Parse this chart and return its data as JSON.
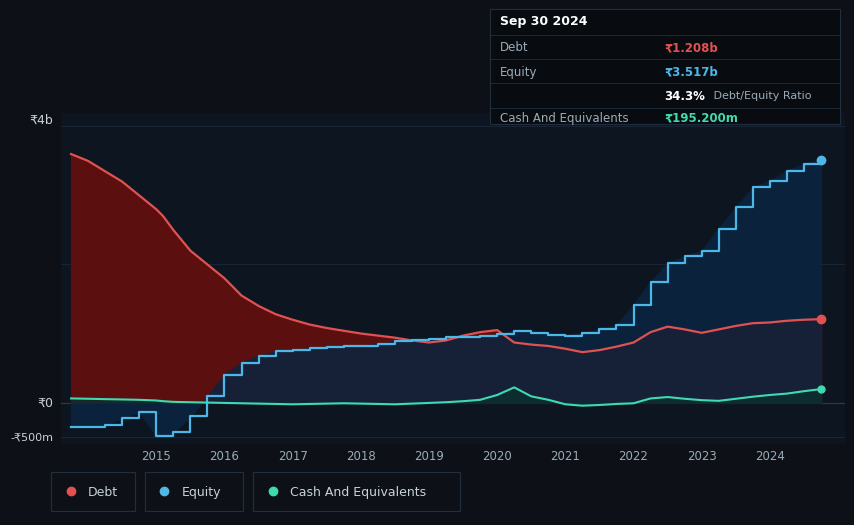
{
  "background_color": "#0d1117",
  "chart_bg": "#0d1520",
  "title": "Sep 30 2024",
  "y_label_4b": "₹4b",
  "y_label_0": "₹0",
  "y_label_neg500m": "-₹500m",
  "x_ticks": [
    "2015",
    "2016",
    "2017",
    "2018",
    "2019",
    "2020",
    "2021",
    "2022",
    "2023",
    "2024"
  ],
  "legend_items": [
    "Debt",
    "Equity",
    "Cash And Equivalents"
  ],
  "debt_color": "#e05252",
  "equity_color": "#4db8e8",
  "cash_color": "#40d9b0",
  "debt_fill_color": "#5c0f0f",
  "equity_fill_color": "#0a2540",
  "cash_fill_color": "#0d2e2e",
  "grid_color": "#1e2d3d",
  "zero_line_color": "#2a3a50",
  "text_color": "#9aabb8",
  "bright_text": "#c8d0da",
  "tooltip_bg": "#080c10",
  "tooltip_border": "#222e3c",
  "debt_tooltip": "₹1.208b",
  "equity_tooltip": "₹3.517b",
  "ratio_pct": "34.3%",
  "ratio_label": "Debt/Equity Ratio",
  "cash_tooltip": "₹195.200m",
  "years": [
    2013.75,
    2014.0,
    2014.25,
    2014.5,
    2014.75,
    2015.0,
    2015.1,
    2015.25,
    2015.5,
    2015.75,
    2016.0,
    2016.25,
    2016.5,
    2016.75,
    2017.0,
    2017.25,
    2017.5,
    2017.75,
    2018.0,
    2018.25,
    2018.5,
    2018.75,
    2019.0,
    2019.25,
    2019.5,
    2019.75,
    2020.0,
    2020.25,
    2020.5,
    2020.75,
    2021.0,
    2021.25,
    2021.5,
    2021.75,
    2022.0,
    2022.25,
    2022.5,
    2022.75,
    2023.0,
    2023.25,
    2023.5,
    2023.75,
    2024.0,
    2024.25,
    2024.5,
    2024.75
  ],
  "debt_values": [
    3600,
    3500,
    3350,
    3200,
    3000,
    2800,
    2700,
    2500,
    2200,
    2000,
    1800,
    1550,
    1400,
    1280,
    1200,
    1130,
    1080,
    1040,
    1000,
    970,
    940,
    900,
    870,
    900,
    970,
    1020,
    1050,
    870,
    840,
    820,
    780,
    730,
    760,
    810,
    870,
    1020,
    1100,
    1060,
    1010,
    1060,
    1110,
    1150,
    1160,
    1185,
    1200,
    1208
  ],
  "equity_values": [
    -350,
    -350,
    -320,
    -230,
    -130,
    -480,
    -490,
    -430,
    -200,
    100,
    400,
    580,
    680,
    740,
    760,
    790,
    805,
    815,
    825,
    855,
    885,
    905,
    920,
    945,
    955,
    965,
    990,
    1040,
    1010,
    985,
    960,
    1010,
    1060,
    1120,
    1420,
    1750,
    2020,
    2120,
    2200,
    2520,
    2830,
    3120,
    3210,
    3360,
    3460,
    3517
  ],
  "cash_values": [
    60,
    55,
    50,
    45,
    40,
    30,
    20,
    10,
    5,
    0,
    -5,
    -10,
    -15,
    -20,
    -25,
    -20,
    -15,
    -10,
    -15,
    -20,
    -25,
    -15,
    -5,
    5,
    20,
    40,
    110,
    220,
    90,
    40,
    -25,
    -45,
    -35,
    -20,
    -10,
    60,
    80,
    55,
    35,
    25,
    55,
    85,
    110,
    130,
    165,
    195
  ],
  "ylim": [
    -600,
    4200
  ],
  "xlim": [
    2013.6,
    2025.1
  ]
}
